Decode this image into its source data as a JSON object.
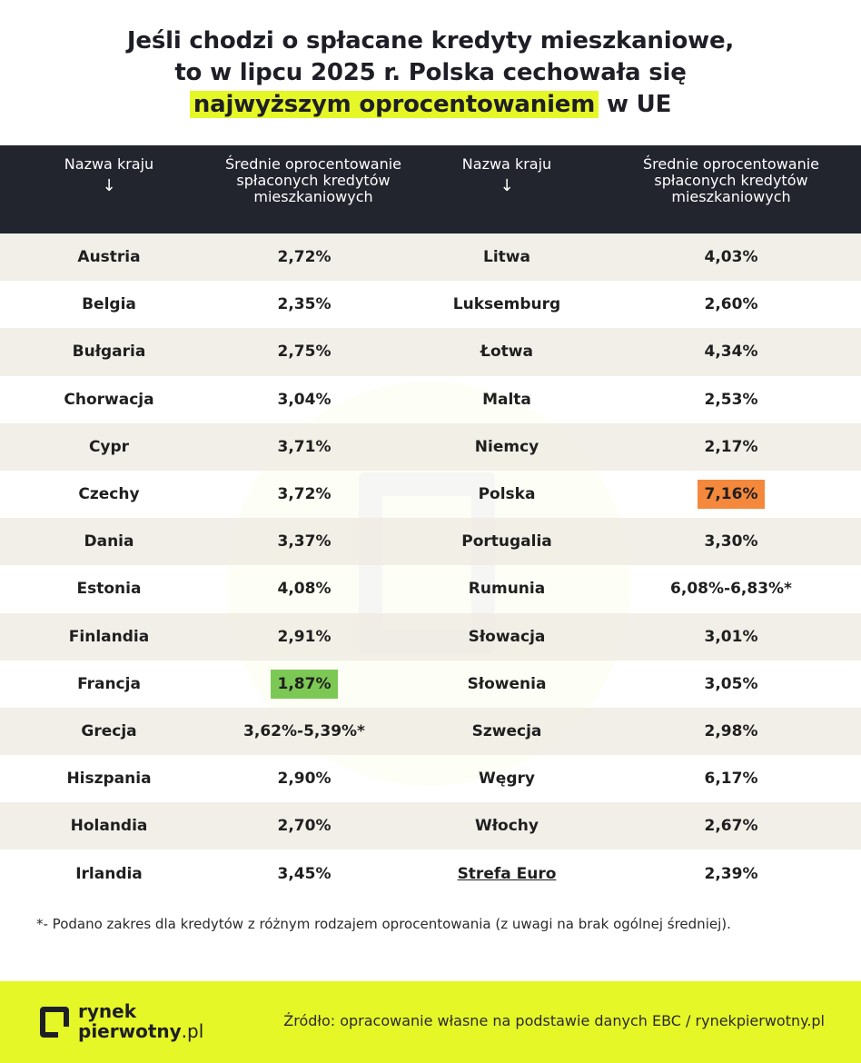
{
  "title": {
    "line1": "Jeśli chodzi o spłacane kredyty mieszkaniowe,",
    "line2": "to w lipcu 2025 r. Polska cechowała się",
    "highlight": "najwyższym oprocentowaniem",
    "line3_rest": " w UE"
  },
  "chart_data": {
    "type": "table",
    "columns": [
      "Nazwa kraju",
      "Średnie oprocentowanie spłaconych kredytów mieszkaniowych",
      "Nazwa kraju",
      "Średnie oprocentowanie spłaconych kredytów mieszkaniowych"
    ],
    "header_arrow": "↓",
    "rows": [
      {
        "c1": "Austria",
        "v1": "2,72%",
        "c2": "Litwa",
        "v2": "4,03%"
      },
      {
        "c1": "Belgia",
        "v1": "2,35%",
        "c2": "Luksemburg",
        "v2": "2,60%"
      },
      {
        "c1": "Bułgaria",
        "v1": "2,75%",
        "c2": "Łotwa",
        "v2": "4,34%"
      },
      {
        "c1": "Chorwacja",
        "v1": "3,04%",
        "c2": "Malta",
        "v2": "2,53%"
      },
      {
        "c1": "Cypr",
        "v1": "3,71%",
        "c2": "Niemcy",
        "v2": "2,17%"
      },
      {
        "c1": "Czechy",
        "v1": "3,72%",
        "c2": "Polska",
        "v2": "7,16%"
      },
      {
        "c1": "Dania",
        "v1": "3,37%",
        "c2": "Portugalia",
        "v2": "3,30%"
      },
      {
        "c1": "Estonia",
        "v1": "4,08%",
        "c2": "Rumunia",
        "v2": "6,08%-6,83%*"
      },
      {
        "c1": "Finlandia",
        "v1": "2,91%",
        "c2": "Słowacja",
        "v2": "3,01%"
      },
      {
        "c1": "Francja",
        "v1": "1,87%",
        "c2": "Słowenia",
        "v2": "3,05%"
      },
      {
        "c1": "Grecja",
        "v1": "3,62%-5,39%*",
        "c2": "Szwecja",
        "v2": "2,98%"
      },
      {
        "c1": "Hiszpania",
        "v1": "2,90%",
        "c2": "Węgry",
        "v2": "6,17%"
      },
      {
        "c1": "Holandia",
        "v1": "2,70%",
        "c2": "Włochy",
        "v2": "2,67%"
      },
      {
        "c1": "Irlandia",
        "v1": "3,45%",
        "c2": "Strefa Euro",
        "v2": "2,39%"
      }
    ],
    "highlights": {
      "lowest": {
        "row": 9,
        "col": "v1",
        "color": "#7cc855"
      },
      "highest": {
        "row": 5,
        "col": "v2",
        "color": "#f4883c"
      }
    }
  },
  "footnote": "*- Podano zakres dla kredytów z różnym rodzajem oprocentowania (z uwagi na brak ogólnej średniej).",
  "footer": {
    "logo_line1": "rynek",
    "logo_line2_bold": "pierwotny",
    "logo_line2_rest": ".pl",
    "source": "Źródło: opracowanie własne na podstawie danych EBC / rynekpierwotny.pl",
    "accent_color": "#e6f727"
  }
}
